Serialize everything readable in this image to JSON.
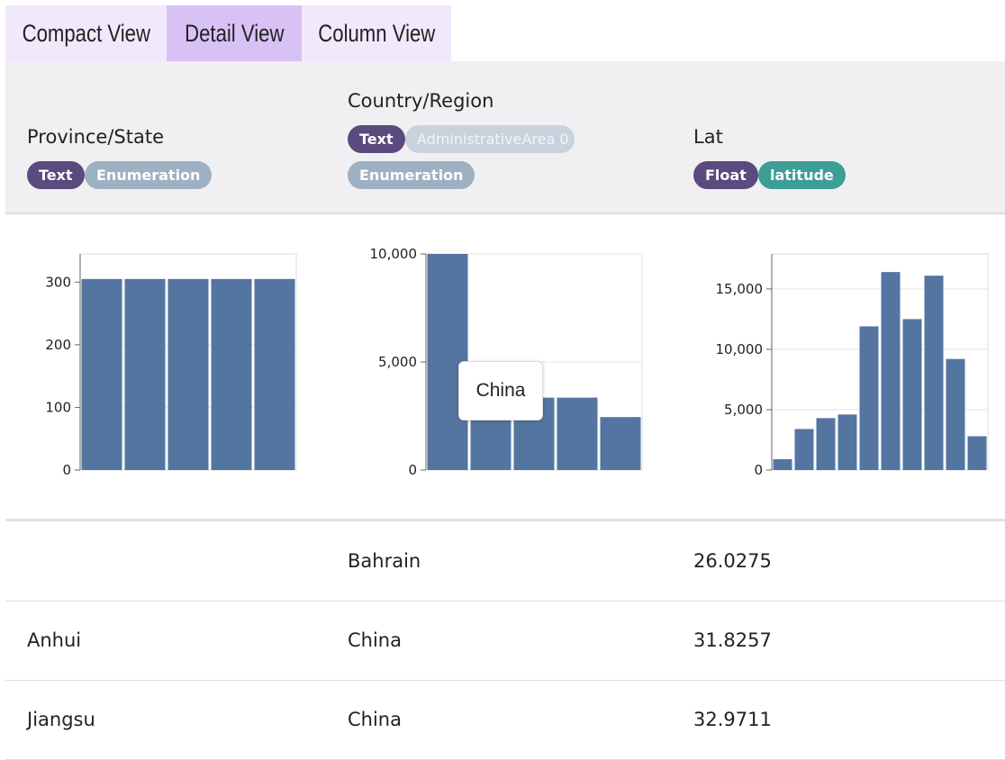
{
  "tabs": [
    {
      "label": "Compact View",
      "active": false
    },
    {
      "label": "Detail View",
      "active": true
    },
    {
      "label": "Column View",
      "active": false
    }
  ],
  "columns": [
    {
      "title": "Province/State",
      "badges": [
        "Text",
        "Enumeration"
      ]
    },
    {
      "title": "Country/Region",
      "badges": [
        "Text",
        "AdministrativeArea 0",
        "Enumeration"
      ]
    },
    {
      "title": "Lat",
      "badges": [
        "Float",
        "latitude"
      ]
    }
  ],
  "colors": {
    "bar": "#5575a1",
    "tab_active": "#d8c2f5",
    "tab_inactive": "#f1e9fb",
    "badge_text": "#5a4a7e",
    "badge_enum": "#9db1c2",
    "badge_semantic": "#3d9e97"
  },
  "chart_data": [
    {
      "type": "bar",
      "column": "Province/State",
      "values": [
        305,
        305,
        305,
        305,
        305
      ],
      "ylim": [
        0,
        345
      ],
      "yticks": [
        0,
        100,
        200,
        300
      ],
      "ytick_labels": [
        "0",
        "100",
        "200",
        "300"
      ]
    },
    {
      "type": "bar",
      "column": "Country/Region",
      "values": [
        10000,
        2800,
        3350,
        3350,
        2450
      ],
      "ylim": [
        0,
        10000
      ],
      "yticks": [
        0,
        5000,
        10000
      ],
      "ytick_labels": [
        "0",
        "5,000",
        "10,000"
      ],
      "tooltip": "China"
    },
    {
      "type": "bar",
      "column": "Lat",
      "values": [
        900,
        3400,
        4300,
        4600,
        11900,
        16400,
        12500,
        16100,
        9200,
        2800
      ],
      "ylim": [
        0,
        17900
      ],
      "yticks": [
        0,
        5000,
        10000,
        15000
      ],
      "ytick_labels": [
        "0",
        "5,000",
        "10,000",
        "15,000"
      ]
    }
  ],
  "rows": [
    {
      "province": "",
      "country": "Bahrain",
      "lat": "26.0275"
    },
    {
      "province": "Anhui",
      "country": "China",
      "lat": "31.8257"
    },
    {
      "province": "Jiangsu",
      "country": "China",
      "lat": "32.9711"
    }
  ]
}
